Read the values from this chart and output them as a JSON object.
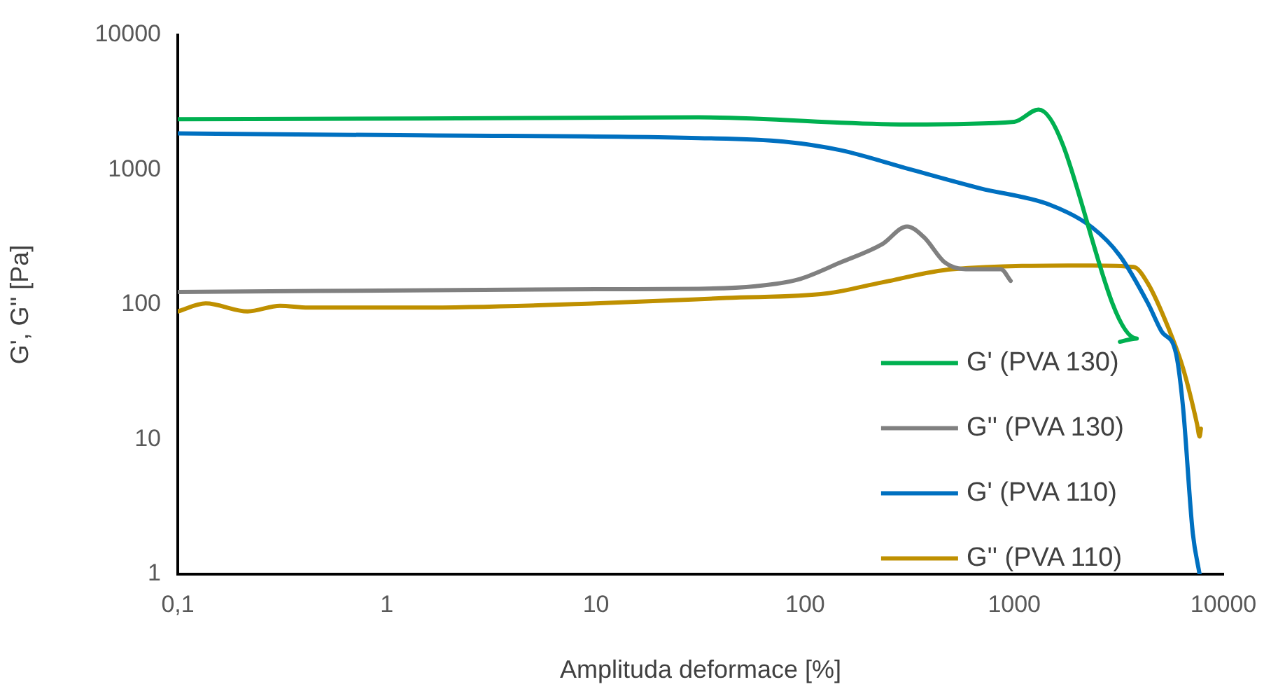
{
  "chart_data": {
    "type": "line",
    "xlabel": "Amplituda deformace [%]",
    "ylabel": "G', G'' [Pa]",
    "log": "xy",
    "grid": false,
    "legend": "bottom right",
    "marker": "none",
    "line_style": "solid",
    "xlim": [
      0.1,
      10000
    ],
    "xticks": [
      {
        "value": 0.1,
        "label": "0,1"
      },
      1,
      10,
      100,
      1000,
      10000
    ],
    "ylim": [
      1,
      10000
    ],
    "yticks": [
      1,
      10,
      100,
      1000,
      10000
    ],
    "series": [
      {
        "name": "G' (PVA 130)",
        "color": "#00b050",
        "x": [
          0.1,
          1.44,
          31,
          316,
          1000,
          1306,
          3850,
          3200
        ],
        "values": [
          2370,
          2400,
          2450,
          2170,
          2270,
          2800,
          56,
          53
        ]
      },
      {
        "name": "G'' (PVA 130)",
        "color": "#808080",
        "x": [
          0.1,
          10,
          31,
          58,
          92,
          147,
          233,
          307,
          370,
          466,
          586,
          862,
          961
        ],
        "values": [
          124,
          130,
          131,
          137,
          153,
          205,
          280,
          380,
          316,
          205,
          183,
          183,
          150
        ]
      },
      {
        "name": "G' (PVA 110)",
        "color": "#0070c0",
        "x": [
          0.1,
          1.44,
          31,
          79,
          147,
          316,
          684,
          1480,
          2350,
          3200,
          4360,
          5070,
          5920,
          6400,
          7130,
          7690
        ],
        "values": [
          1860,
          1800,
          1720,
          1620,
          1400,
          1010,
          730,
          550,
          375,
          230,
          102,
          63,
          44,
          17.8,
          2.05,
          1
        ]
      },
      {
        "name": "G'' (PVA 110)",
        "color": "#bf9000",
        "x": [
          0.1,
          0.136,
          0.216,
          0.308,
          0.42,
          1.44,
          10,
          42,
          127,
          233,
          505,
          2350,
          3720,
          4360,
          5480,
          6400,
          7480,
          7690,
          7810
        ],
        "values": [
          89,
          102,
          89,
          98,
          95,
          95,
          102,
          112,
          121,
          146,
          183,
          195,
          190,
          143,
          66,
          34,
          13,
          10.5,
          12
        ]
      }
    ]
  }
}
